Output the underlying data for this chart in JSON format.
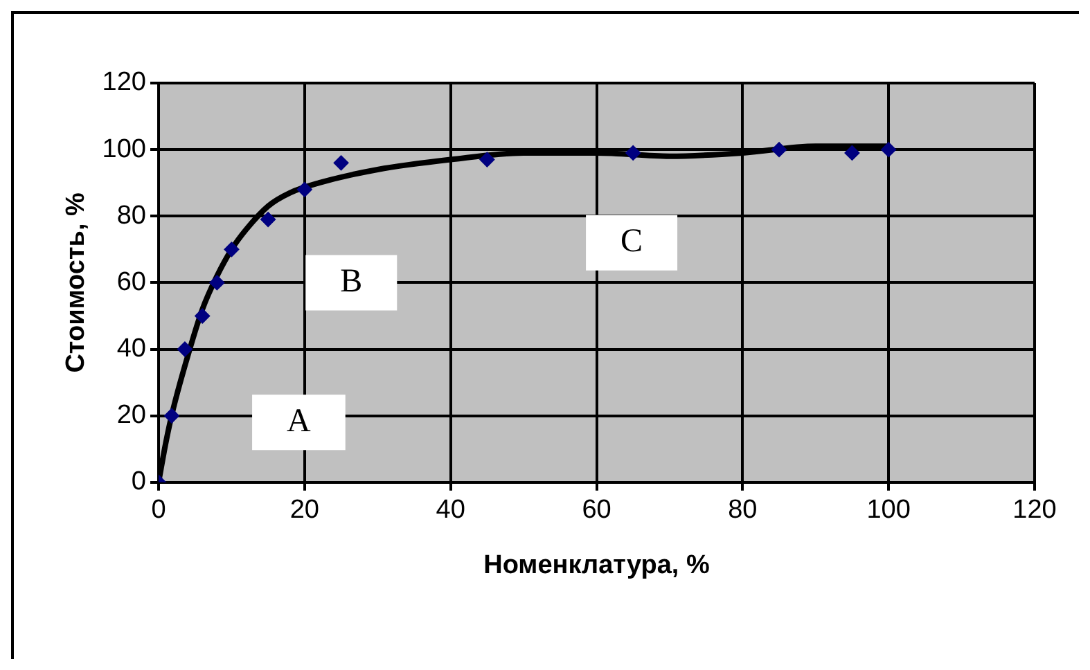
{
  "chart_data": {
    "type": "scatter",
    "xlabel": "Номенклатура, %",
    "ylabel": "Стоимость, %",
    "series": [
      {
        "type": "scatter",
        "color": "#000080",
        "marker": "diamond",
        "x": [
          0,
          1.8,
          3.6,
          6,
          8,
          10,
          15,
          20,
          25,
          45,
          65,
          85,
          95,
          100
        ],
        "values": [
          0,
          20,
          40,
          50,
          60,
          70,
          79,
          88,
          96,
          97,
          99,
          100,
          99,
          100
        ]
      },
      {
        "type": "line",
        "color": "#000000",
        "marker": "none",
        "x": [
          0,
          1,
          2,
          4,
          6,
          8,
          10,
          12,
          15,
          18,
          22,
          30,
          40,
          50,
          60,
          70,
          80,
          90,
          95,
          100
        ],
        "values": [
          0,
          12,
          22,
          38,
          52,
          62,
          70,
          76,
          83,
          87,
          90,
          94,
          97,
          99,
          99,
          98,
          99,
          101,
          101,
          101
        ]
      }
    ],
    "xlim": [
      0,
      120
    ],
    "xticks": [
      0,
      20,
      40,
      60,
      80,
      100,
      120
    ],
    "ylim": [
      0,
      120
    ],
    "yticks": [
      0,
      20,
      40,
      60,
      80,
      100,
      120
    ],
    "grid": true,
    "legend": false,
    "annotations": [
      "A",
      "B",
      "C"
    ]
  }
}
